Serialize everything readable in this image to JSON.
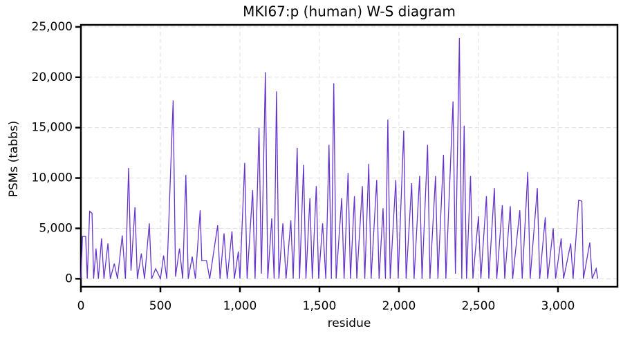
{
  "chart_data": {
    "type": "line",
    "title": "MKI67:p (human) W-S diagram",
    "x_label": "residue",
    "y_label": "PSMs (tabbs)",
    "xlim": [
      0,
      3374
    ],
    "ylim": [
      -800,
      25200
    ],
    "xticks": [
      0,
      500,
      {
        "value": 1000,
        "label": "1,000"
      },
      {
        "value": 1500,
        "label": "1,500"
      },
      {
        "value": 2000,
        "label": "2,000"
      },
      {
        "value": 2500,
        "label": "2,500"
      },
      {
        "value": 3000,
        "label": "3,000"
      }
    ],
    "yticks": [
      0,
      {
        "value": 5000,
        "label": "5,000"
      },
      {
        "value": 10000,
        "label": "10,000"
      },
      {
        "value": 15000,
        "label": "15,000"
      },
      {
        "value": 20000,
        "label": "20,000"
      },
      {
        "value": 25000,
        "label": "25,000"
      }
    ],
    "grid": true,
    "x": [
      0,
      10,
      30,
      40,
      55,
      70,
      80,
      95,
      110,
      130,
      145,
      170,
      185,
      210,
      230,
      260,
      280,
      300,
      315,
      340,
      355,
      380,
      400,
      430,
      445,
      470,
      500,
      520,
      540,
      580,
      595,
      620,
      640,
      660,
      675,
      700,
      720,
      750,
      760,
      790,
      810,
      860,
      875,
      900,
      920,
      950,
      965,
      990,
      1000,
      1030,
      1045,
      1080,
      1095,
      1120,
      1135,
      1160,
      1175,
      1200,
      1215,
      1230,
      1245,
      1270,
      1290,
      1320,
      1335,
      1360,
      1375,
      1400,
      1415,
      1440,
      1455,
      1480,
      1495,
      1520,
      1540,
      1560,
      1575,
      1590,
      1605,
      1640,
      1655,
      1680,
      1695,
      1720,
      1735,
      1770,
      1785,
      1810,
      1825,
      1860,
      1875,
      1900,
      1915,
      1930,
      1945,
      1980,
      1995,
      2030,
      2045,
      2080,
      2095,
      2130,
      2145,
      2180,
      2195,
      2230,
      2245,
      2280,
      2295,
      2340,
      2355,
      2380,
      2395,
      2410,
      2425,
      2450,
      2465,
      2500,
      2515,
      2550,
      2565,
      2600,
      2615,
      2650,
      2665,
      2700,
      2715,
      2760,
      2775,
      2810,
      2825,
      2870,
      2885,
      2920,
      2935,
      2970,
      2985,
      3020,
      3035,
      3080,
      3095,
      3130,
      3150,
      3160,
      3200,
      3215,
      3240,
      3250
    ],
    "series": [
      {
        "color": "#6633cc",
        "values": [
          0,
          4200,
          4200,
          0,
          6700,
          6500,
          0,
          3000,
          0,
          4000,
          0,
          3500,
          0,
          1500,
          0,
          4300,
          0,
          11000,
          800,
          7100,
          0,
          2500,
          0,
          5500,
          0,
          1000,
          0,
          2300,
          0,
          17700,
          200,
          3000,
          0,
          10300,
          0,
          2200,
          0,
          6800,
          1800,
          1800,
          0,
          5300,
          0,
          4500,
          0,
          4700,
          0,
          2700,
          0,
          11500,
          0,
          8800,
          0,
          15000,
          500,
          20500,
          0,
          6000,
          0,
          18600,
          0,
          5500,
          0,
          5800,
          0,
          13000,
          0,
          11300,
          0,
          8000,
          0,
          9200,
          0,
          5500,
          0,
          13300,
          0,
          19400,
          0,
          8000,
          0,
          10500,
          0,
          8200,
          0,
          9200,
          0,
          11400,
          0,
          9800,
          0,
          7000,
          0,
          15800,
          0,
          9800,
          0,
          14700,
          0,
          9500,
          0,
          10200,
          0,
          13300,
          0,
          10200,
          0,
          12300,
          0,
          17600,
          500,
          23900,
          0,
          15200,
          0,
          10200,
          0,
          6200,
          0,
          8200,
          0,
          9000,
          0,
          7300,
          0,
          7200,
          0,
          6800,
          0,
          10600,
          0,
          9000,
          0,
          6100,
          0,
          5000,
          0,
          4000,
          0,
          3500,
          0,
          7800,
          7700,
          0,
          3600,
          0,
          1000,
          0
        ]
      }
    ]
  }
}
